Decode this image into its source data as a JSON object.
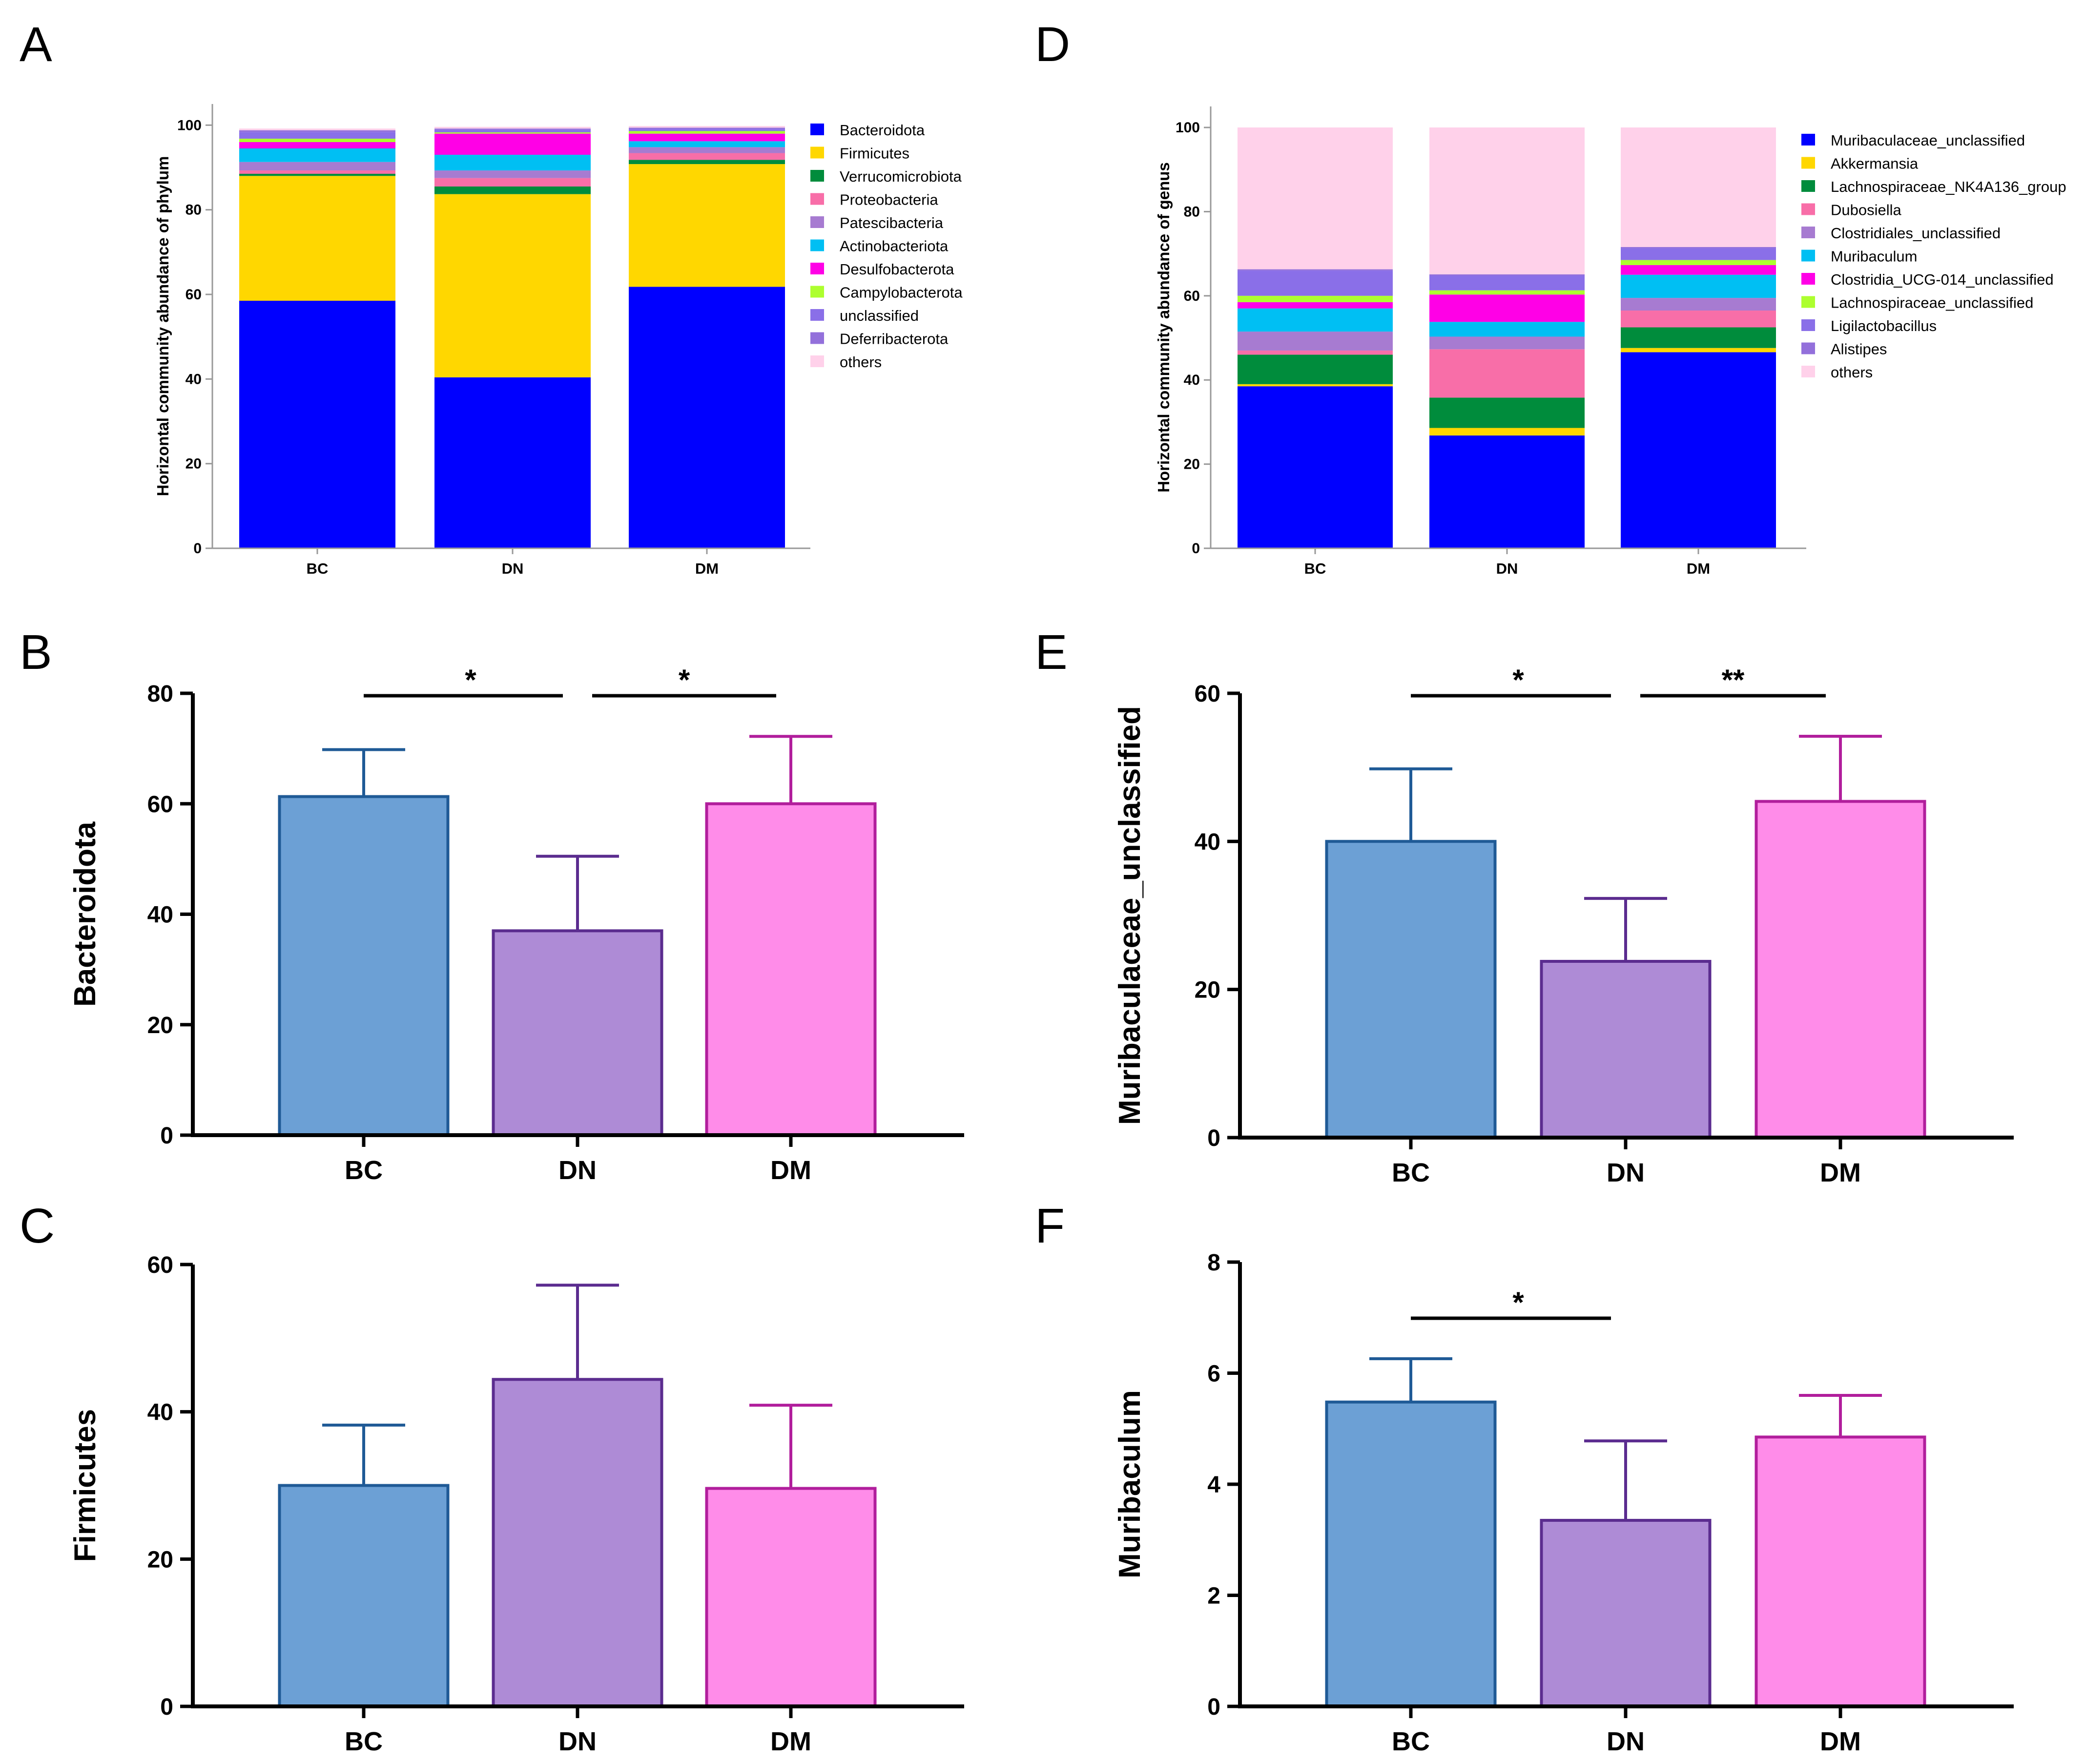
{
  "colors": {
    "BC": {
      "fill": "#6CA0D5",
      "stroke": "#1F5A96"
    },
    "DN": {
      "fill": "#AE8BD6",
      "stroke": "#5B2C8F"
    },
    "DM": {
      "fill": "#FF8CE9",
      "stroke": "#B11E9C"
    }
  },
  "chart_data": [
    {
      "id": "A",
      "panel_label": "A",
      "type": "bar",
      "stacked": true,
      "categories": [
        "BC",
        "DN",
        "DM"
      ],
      "ylabel": "Horizontal community abundance of phylum",
      "ylim": [
        0,
        105
      ],
      "yticks": [
        0,
        20,
        40,
        60,
        80,
        100
      ],
      "series": [
        {
          "name": "Bacteroidota",
          "color": "#0000FF",
          "values": [
            58.5,
            40.4,
            61.8
          ]
        },
        {
          "name": "Firmicutes",
          "color": "#FFD700",
          "values": [
            29.5,
            43.3,
            29.0
          ]
        },
        {
          "name": "Verrucomicrobiota",
          "color": "#008C3C",
          "values": [
            0.5,
            1.8,
            1.0
          ]
        },
        {
          "name": "Proteobacteria",
          "color": "#F86EA8",
          "values": [
            0.8,
            2.0,
            1.6
          ]
        },
        {
          "name": "Patescibacteria",
          "color": "#A77BD1",
          "values": [
            2.0,
            1.8,
            1.4
          ]
        },
        {
          "name": "Actinobacteriota",
          "color": "#00BFF3",
          "values": [
            3.2,
            3.7,
            1.4
          ]
        },
        {
          "name": "Desulfobacterota",
          "color": "#FF00E6",
          "values": [
            1.5,
            5.0,
            1.8
          ]
        },
        {
          "name": "Campylobacterota",
          "color": "#ADFF2F",
          "values": [
            0.8,
            0.3,
            0.6
          ]
        },
        {
          "name": "unclassified",
          "color": "#8A6FE8",
          "values": [
            1.6,
            0.6,
            0.5
          ]
        },
        {
          "name": "Deferribacterota",
          "color": "#9370DB",
          "values": [
            0.4,
            0.3,
            0.3
          ]
        },
        {
          "name": "others",
          "color": "#FFD1EA",
          "values": [
            0.4,
            0.4,
            0.4
          ]
        }
      ]
    },
    {
      "id": "D",
      "panel_label": "D",
      "type": "bar",
      "stacked": true,
      "categories": [
        "BC",
        "DN",
        "DM"
      ],
      "ylabel": "Horizontal community abundance of genus",
      "ylim": [
        0,
        105
      ],
      "yticks": [
        0,
        20,
        40,
        60,
        80,
        100
      ],
      "series": [
        {
          "name": "Muribaculaceae_unclassified",
          "color": "#0000FF",
          "values": [
            38.5,
            26.8,
            46.6
          ]
        },
        {
          "name": "Akkermansia",
          "color": "#FFD700",
          "values": [
            0.5,
            1.8,
            1.0
          ]
        },
        {
          "name": "Lachnospiraceae_NK4A136_group",
          "color": "#008C3C",
          "values": [
            7.0,
            7.2,
            4.9
          ]
        },
        {
          "name": "Dubosiella",
          "color": "#F86EA8",
          "values": [
            1.0,
            11.5,
            4.0
          ]
        },
        {
          "name": "Clostridiales_unclassified",
          "color": "#A77BD1",
          "values": [
            4.5,
            3.0,
            3.0
          ]
        },
        {
          "name": "Muribaculum",
          "color": "#00BFF3",
          "values": [
            5.5,
            3.5,
            5.5
          ]
        },
        {
          "name": "Clostridia_UCG-014_unclassified",
          "color": "#FF00E6",
          "values": [
            1.5,
            6.5,
            2.3
          ]
        },
        {
          "name": "Lachnospiraceae_unclassified",
          "color": "#ADFF2F",
          "values": [
            1.5,
            1.0,
            1.2
          ]
        },
        {
          "name": "Ligilactobacillus",
          "color": "#8A6FE8",
          "values": [
            6.0,
            3.5,
            2.8
          ]
        },
        {
          "name": "Alistipes",
          "color": "#9370DB",
          "values": [
            0.3,
            0.3,
            0.3
          ]
        },
        {
          "name": "others",
          "color": "#FFD1EA",
          "values": [
            33.7,
            34.9,
            28.4
          ]
        }
      ]
    },
    {
      "id": "B",
      "panel_label": "B",
      "type": "bar",
      "categories": [
        "BC",
        "DN",
        "DM"
      ],
      "values": [
        61.3,
        37.0,
        60.0
      ],
      "errors": [
        8.5,
        13.5,
        12.2
      ],
      "ylabel": "Bacteroidota",
      "ylim": [
        0,
        80
      ],
      "yticks": [
        0,
        20,
        40,
        60,
        80
      ],
      "significance": [
        {
          "from": 0,
          "to": 1,
          "label": "*"
        },
        {
          "from": 1,
          "to": 2,
          "label": "*"
        }
      ]
    },
    {
      "id": "E",
      "panel_label": "E",
      "type": "bar",
      "categories": [
        "BC",
        "DN",
        "DM"
      ],
      "values": [
        40.0,
        23.8,
        45.4
      ],
      "errors": [
        9.8,
        8.5,
        8.8
      ],
      "ylabel": "Muribaculaceae_unclassified",
      "ylim": [
        0,
        60
      ],
      "yticks": [
        0,
        20,
        40,
        60
      ],
      "significance": [
        {
          "from": 0,
          "to": 1,
          "label": "*"
        },
        {
          "from": 1,
          "to": 2,
          "label": "**"
        }
      ]
    },
    {
      "id": "C",
      "panel_label": "C",
      "type": "bar",
      "categories": [
        "BC",
        "DN",
        "DM"
      ],
      "values": [
        30.0,
        44.4,
        29.6
      ],
      "errors": [
        8.2,
        12.8,
        11.3
      ],
      "ylabel": "Firmicutes",
      "ylim": [
        0,
        60
      ],
      "yticks": [
        0,
        20,
        40,
        60
      ],
      "significance": []
    },
    {
      "id": "F",
      "panel_label": "F",
      "type": "bar",
      "categories": [
        "BC",
        "DN",
        "DM"
      ],
      "values": [
        5.48,
        3.35,
        4.85
      ],
      "errors": [
        0.78,
        1.43,
        0.75
      ],
      "ylabel": "Muribaculum",
      "ylim": [
        0,
        8
      ],
      "yticks": [
        0,
        2,
        4,
        6,
        8
      ],
      "significance": [
        {
          "from": 0,
          "to": 1,
          "label": "*"
        }
      ]
    }
  ]
}
